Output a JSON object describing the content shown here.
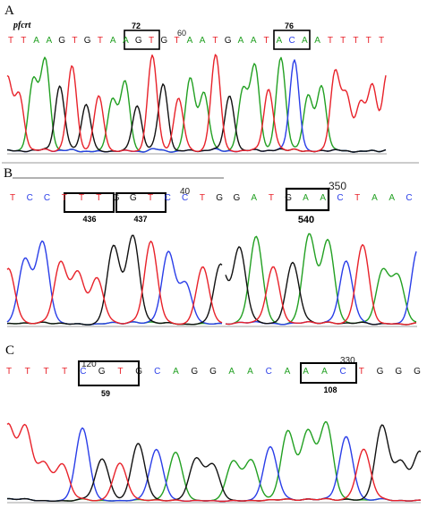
{
  "colors": {
    "A": "#22a022",
    "C": "#2a3ee8",
    "G": "#111111",
    "T": "#e8222a",
    "divider": "#999999"
  },
  "panels": [
    {
      "label": "A",
      "gene": "pfcrt",
      "sequence": "TTAAGTGTAAGTGTAATGAATACAATTTTT",
      "markers": [
        "60"
      ],
      "codons": [
        {
          "label": "72",
          "from": 9,
          "to": 11
        },
        {
          "label": "76",
          "from": 21,
          "to": 23
        }
      ]
    },
    {
      "label": "B",
      "gene": "",
      "sequence": "TCCTTTGGTCCTGGATGAACTAAC",
      "markers": [
        "40",
        "350"
      ],
      "codons": [
        {
          "label": "436",
          "from": 3,
          "to": 5
        },
        {
          "label": "437",
          "from": 6,
          "to": 8
        },
        {
          "label": "540",
          "from": 16,
          "to": 18
        }
      ]
    },
    {
      "label": "C",
      "gene": "",
      "sequence": "TTTTCGTGCAGGAACAAACTGGG",
      "markers": [
        "120",
        "330"
      ],
      "codons": [
        {
          "label": "59",
          "from": 4,
          "to": 6
        },
        {
          "label": "108",
          "from": 15,
          "to": 17
        }
      ]
    }
  ]
}
